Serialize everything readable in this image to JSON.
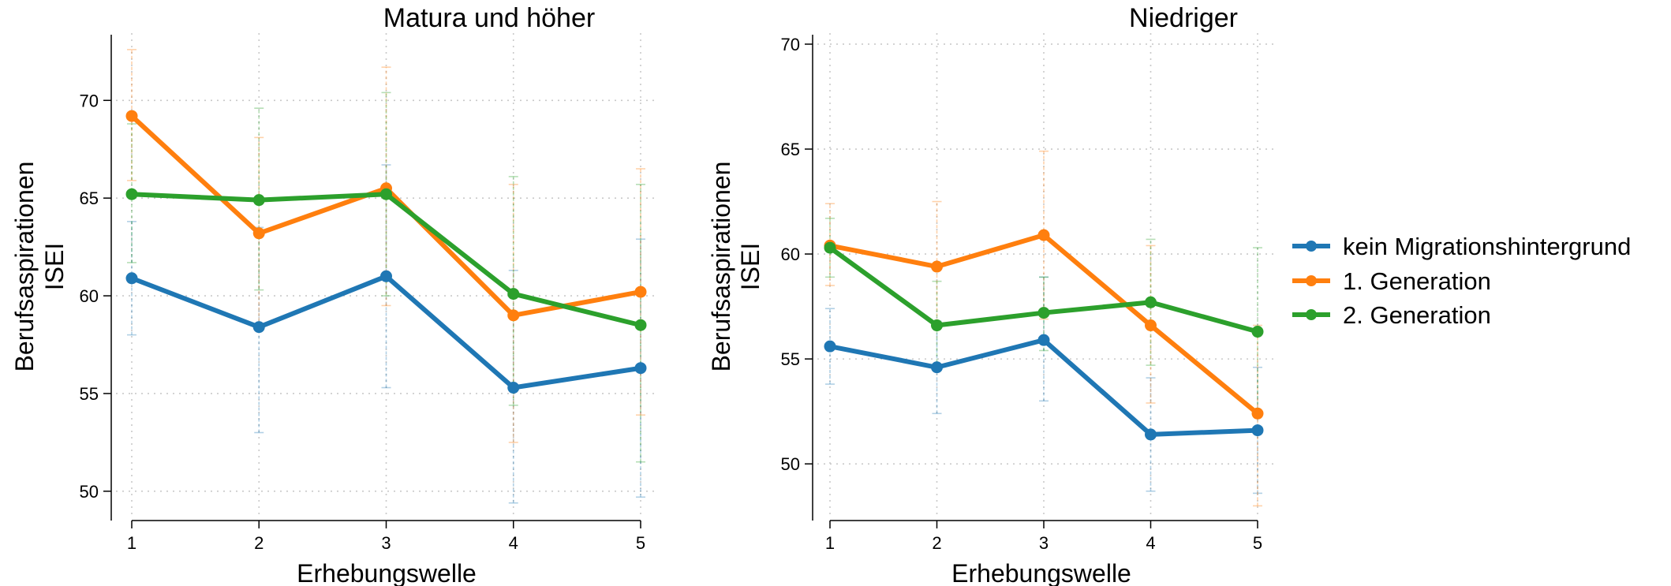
{
  "figure": {
    "x_label": "Erhebungswelle",
    "y_label_lines": [
      "Berufsaspirationen",
      "ISEI"
    ]
  },
  "legend": {
    "items": [
      {
        "label": "kein Migrationshintergrund",
        "color": "#1f77b4"
      },
      {
        "label": "1. Generation",
        "color": "#ff7f0e"
      },
      {
        "label": "2. Generation",
        "color": "#2ca02c"
      }
    ],
    "placement": "right, outside plots"
  },
  "chart_data": [
    {
      "type": "line",
      "title": "Matura und höher",
      "xlabel": "Erhebungswelle",
      "ylabel": "Berufsaspirationen ISEI",
      "x": [
        1,
        2,
        3,
        4,
        5
      ],
      "xlim": [
        1,
        5
      ],
      "ylim": [
        48.5,
        73.2
      ],
      "yticks": [
        50,
        55,
        60,
        65,
        70
      ],
      "grid": true,
      "error_bars": true,
      "series": [
        {
          "name": "kein Migrationshintergrund",
          "color": "#1f77b4",
          "values": [
            60.9,
            58.4,
            61.0,
            55.3,
            56.3
          ],
          "ci_low": [
            58.0,
            53.0,
            55.3,
            49.4,
            49.7
          ],
          "ci_high": [
            63.8,
            63.5,
            66.7,
            61.3,
            62.9
          ]
        },
        {
          "name": "1. Generation",
          "color": "#ff7f0e",
          "values": [
            69.2,
            63.2,
            65.5,
            59.0,
            60.2
          ],
          "ci_low": [
            65.9,
            58.4,
            59.5,
            52.5,
            53.9
          ],
          "ci_high": [
            72.6,
            68.1,
            71.7,
            65.7,
            66.5
          ]
        },
        {
          "name": "2. Generation",
          "color": "#2ca02c",
          "values": [
            65.2,
            64.9,
            65.2,
            60.1,
            58.5
          ],
          "ci_low": [
            61.7,
            60.3,
            60.0,
            54.4,
            51.5
          ],
          "ci_high": [
            68.8,
            69.6,
            70.4,
            66.1,
            65.7
          ]
        }
      ]
    },
    {
      "type": "line",
      "title": "Niedriger",
      "xlabel": "Erhebungswelle",
      "ylabel": "Berufsaspirationen ISEI",
      "x": [
        1,
        2,
        3,
        4,
        5
      ],
      "xlim": [
        1,
        5
      ],
      "ylim": [
        47.3,
        70.3
      ],
      "yticks": [
        50,
        55,
        60,
        65,
        70
      ],
      "grid": true,
      "error_bars": true,
      "series": [
        {
          "name": "kein Migrationshintergrund",
          "color": "#1f77b4",
          "values": [
            55.6,
            54.6,
            55.9,
            51.4,
            51.6
          ],
          "ci_low": [
            53.8,
            52.4,
            53.0,
            48.7,
            48.6
          ],
          "ci_high": [
            57.4,
            56.8,
            58.9,
            54.1,
            54.6
          ]
        },
        {
          "name": "1. Generation",
          "color": "#ff7f0e",
          "values": [
            60.4,
            59.4,
            60.9,
            56.6,
            52.4
          ],
          "ci_low": [
            58.5,
            56.5,
            56.9,
            52.9,
            48.0
          ],
          "ci_high": [
            62.4,
            62.5,
            64.9,
            60.4,
            56.6
          ]
        },
        {
          "name": "2. Generation",
          "color": "#2ca02c",
          "values": [
            60.3,
            56.6,
            57.2,
            57.7,
            56.3
          ],
          "ci_low": [
            58.9,
            54.6,
            55.4,
            54.7,
            52.3
          ],
          "ci_high": [
            61.7,
            58.7,
            58.9,
            60.7,
            60.3
          ]
        }
      ]
    }
  ]
}
